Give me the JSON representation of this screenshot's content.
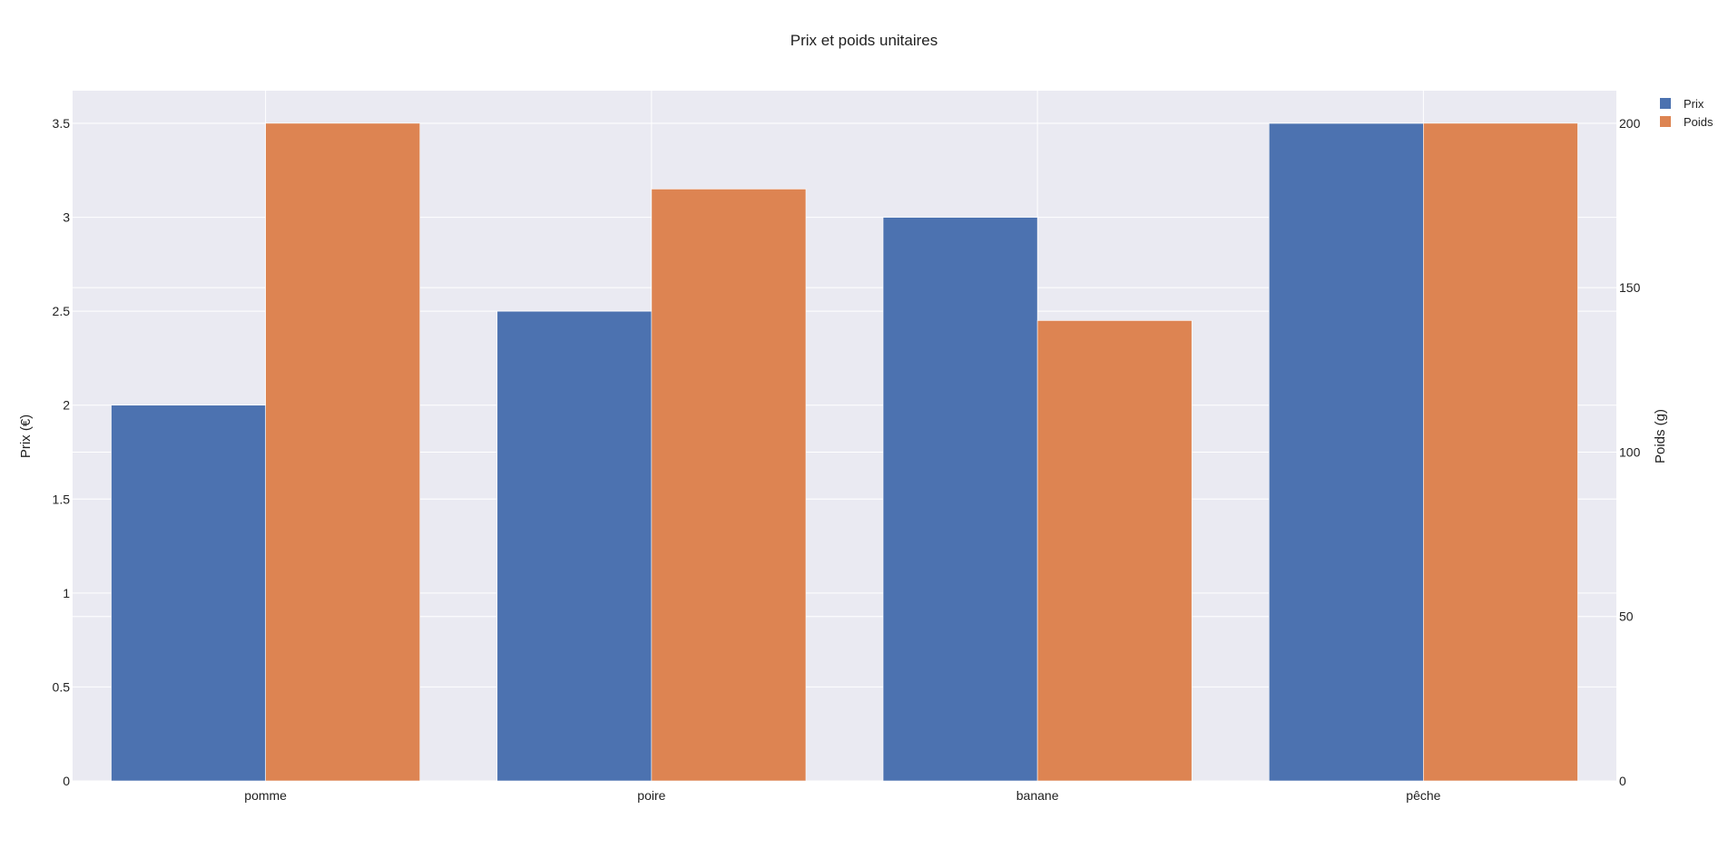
{
  "chart_data": {
    "type": "bar",
    "title": "Prix et poids unitaires",
    "categories": [
      "pomme",
      "poire",
      "banane",
      "pêche"
    ],
    "series": [
      {
        "name": "Prix",
        "axis": "left",
        "values": [
          2,
          2.5,
          3,
          3.5
        ],
        "color": "#4c72b0"
      },
      {
        "name": "Poids",
        "axis": "right",
        "values": [
          200,
          180,
          140,
          200
        ],
        "color": "#dd8452"
      }
    ],
    "y_left": {
      "label": "Prix (€)",
      "range": [
        0,
        3.674
      ],
      "ticks": [
        0,
        0.5,
        1,
        1.5,
        2,
        2.5,
        3,
        3.5
      ]
    },
    "y_right": {
      "label": "Poids (g)",
      "range": [
        0,
        209.9
      ],
      "ticks": [
        0,
        50,
        100,
        150,
        200
      ]
    },
    "grid": true,
    "legend_position": "top-right",
    "plot_background": "#eaeaf2"
  }
}
